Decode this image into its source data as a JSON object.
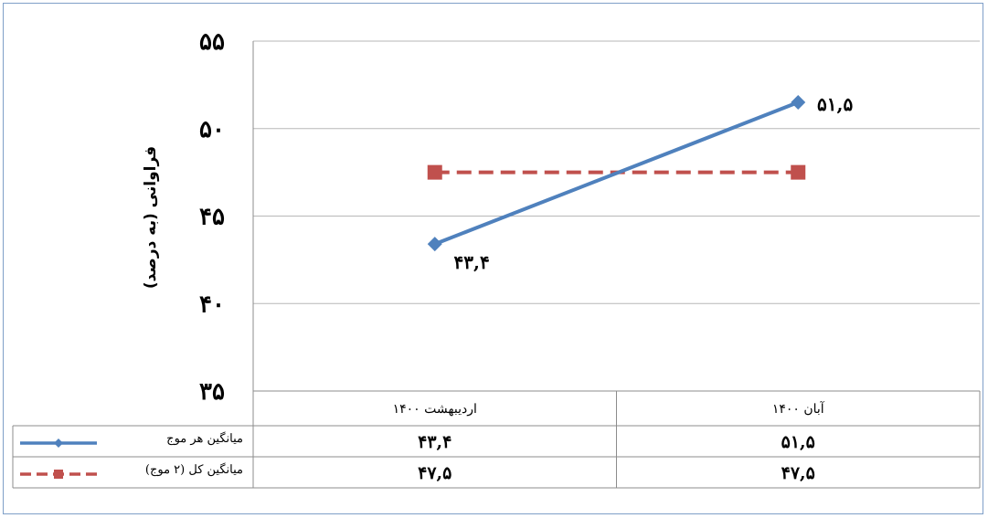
{
  "chart_data": {
    "type": "line",
    "title": "",
    "xlabel": "",
    "ylabel": "فراوانی (به درصد)",
    "ylim": [
      35,
      55
    ],
    "yticks": [
      35,
      40,
      45,
      50,
      55
    ],
    "ytick_labels": [
      "۳۵",
      "۴۰",
      "۴۵",
      "۵۰",
      "۵۵"
    ],
    "categories": [
      "اردیبهشت ۱۴۰۰",
      "آبان ۱۴۰۰"
    ],
    "grid": true,
    "legend_placement": "data-table-left",
    "series": [
      {
        "name": "میانگین هر موج",
        "values": [
          43.4,
          51.5
        ],
        "labels": [
          "۴۳,۴",
          "۵۱,۵"
        ],
        "color": "#4f81bd",
        "marker": "diamond",
        "dash": "solid"
      },
      {
        "name": "میانگین کل (۲ موج)",
        "values": [
          47.5,
          47.5
        ],
        "labels": [
          "۴۷,۵",
          "۴۷,۵"
        ],
        "color": "#c0504d",
        "marker": "square",
        "dash": "dashed"
      }
    ]
  }
}
